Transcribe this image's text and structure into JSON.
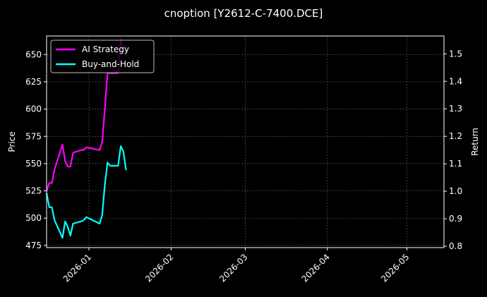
{
  "chart_data": {
    "type": "line",
    "title": "cnoption [Y2612-C-7400.DCE]",
    "xlabel": "",
    "ylabel_left": "Price",
    "ylabel_right": "Return",
    "x_ticks": [
      "2026-01",
      "2026-02",
      "2026-03",
      "2026-04",
      "2026-05"
    ],
    "x_tick_dates": [
      "2026-01-01",
      "2026-02-01",
      "2026-03-01",
      "2026-04-01",
      "2026-05-01"
    ],
    "xlim": [
      "2025-12-16",
      "2026-05-15"
    ],
    "ylim_left": [
      473,
      667
    ],
    "ylim_right": [
      0.795,
      1.565
    ],
    "y_ticks_left": [
      475,
      500,
      525,
      550,
      575,
      600,
      625,
      650
    ],
    "y_ticks_right": [
      0.8,
      0.9,
      1.0,
      1.1,
      1.2,
      1.3,
      1.4,
      1.5
    ],
    "grid": true,
    "legend_position": "top-left",
    "series": [
      {
        "name": "AI Strategy",
        "axis": "right",
        "color": "#ff00ff",
        "x": [
          "2025-12-16",
          "2025-12-17",
          "2025-12-18",
          "2025-12-19",
          "2025-12-22",
          "2025-12-23",
          "2025-12-24",
          "2025-12-25",
          "2025-12-26",
          "2025-12-29",
          "2025-12-30",
          "2025-12-31",
          "2026-01-05",
          "2026-01-06",
          "2026-01-07",
          "2026-01-08",
          "2026-01-09",
          "2026-01-12",
          "2026-01-13",
          "2026-01-14",
          "2026-01-15"
        ],
        "values": [
          1.0,
          1.03,
          1.03,
          1.08,
          1.17,
          1.11,
          1.09,
          1.09,
          1.14,
          1.15,
          1.15,
          1.16,
          1.15,
          1.18,
          1.3,
          1.43,
          1.43,
          1.43,
          1.55,
          1.52,
          1.53
        ]
      },
      {
        "name": "Buy-and-Hold",
        "axis": "left",
        "color": "#00ffff",
        "x": [
          "2025-12-16",
          "2025-12-17",
          "2025-12-18",
          "2025-12-19",
          "2025-12-22",
          "2025-12-23",
          "2025-12-24",
          "2025-12-25",
          "2025-12-26",
          "2025-12-29",
          "2025-12-30",
          "2025-12-31",
          "2026-01-05",
          "2026-01-06",
          "2026-01-07",
          "2026-01-08",
          "2026-01-09",
          "2026-01-12",
          "2026-01-13",
          "2026-01-14",
          "2026-01-15"
        ],
        "values": [
          523,
          510,
          510,
          498,
          482,
          497,
          492,
          484,
          495,
          497,
          498,
          501,
          495,
          503,
          531,
          551,
          548,
          548,
          566,
          561,
          544
        ]
      }
    ]
  }
}
